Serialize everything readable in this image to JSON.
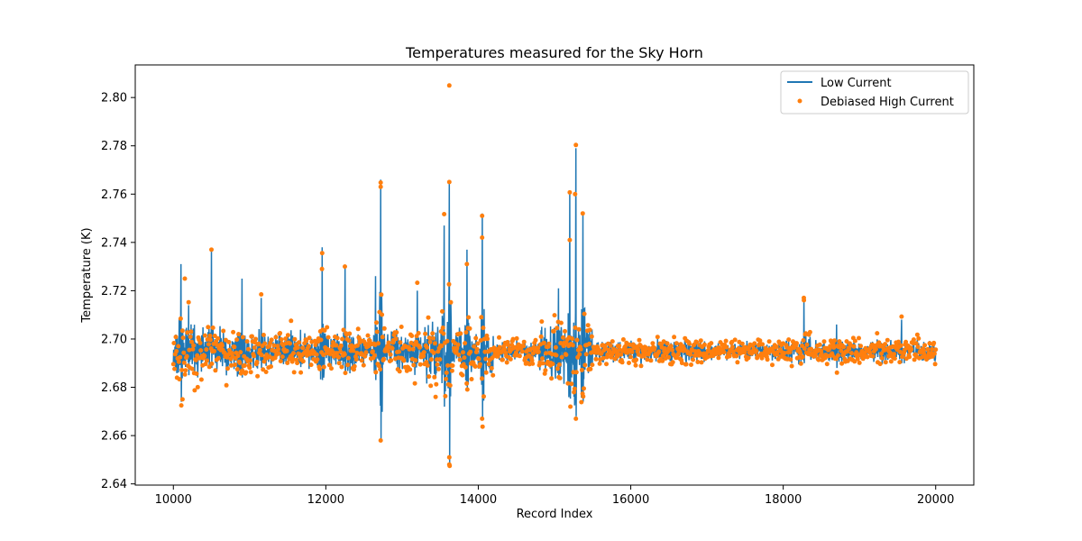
{
  "chart_data": {
    "type": "line",
    "title": "Temperatures measured for the Sky Horn",
    "xlabel": "Record Index",
    "ylabel": "Temperature (K)",
    "xlim": [
      9500,
      20500
    ],
    "ylim": [
      2.6395,
      2.8135
    ],
    "xticks": [
      10000,
      12000,
      14000,
      16000,
      18000,
      20000
    ],
    "yticks": [
      2.64,
      2.66,
      2.68,
      2.7,
      2.72,
      2.74,
      2.76,
      2.78,
      2.8
    ],
    "ytick_labels": [
      "2.64",
      "2.66",
      "2.68",
      "2.70",
      "2.72",
      "2.74",
      "2.76",
      "2.78",
      "2.80"
    ],
    "legend_position": "top-right",
    "baseline": 2.695,
    "series": [
      {
        "name": "Low Current",
        "style": "line",
        "color": "#1f77b4",
        "spikes": [
          [
            10100,
            2.731,
            2.674
          ],
          [
            10200,
            2.714,
            2.685
          ],
          [
            10500,
            2.737,
            2.688
          ],
          [
            10900,
            2.725,
            2.684
          ],
          [
            11150,
            2.717,
            2.688
          ],
          [
            11950,
            2.738,
            2.683
          ],
          [
            12250,
            2.73,
            2.686
          ],
          [
            12650,
            2.726,
            2.683
          ],
          [
            12720,
            2.766,
            2.658
          ],
          [
            13200,
            2.72,
            2.69
          ],
          [
            13550,
            2.747,
            2.672
          ],
          [
            13620,
            2.765,
            2.648
          ],
          [
            13850,
            2.737,
            2.679
          ],
          [
            14050,
            2.752,
            2.667
          ],
          [
            15050,
            2.721,
            2.683
          ],
          [
            15200,
            2.76,
            2.68
          ],
          [
            15280,
            2.779,
            2.668
          ],
          [
            15370,
            2.752,
            2.674
          ],
          [
            18270,
            2.717,
            2.69
          ],
          [
            18700,
            2.706,
            2.688
          ],
          [
            19550,
            2.708,
            2.69
          ]
        ],
        "noise": [
          [
            10000,
            10400,
            0.01
          ],
          [
            10400,
            11000,
            0.007
          ],
          [
            11000,
            12700,
            0.006
          ],
          [
            12700,
            13300,
            0.007
          ],
          [
            13300,
            14200,
            0.009
          ],
          [
            14200,
            14800,
            0.004
          ],
          [
            14800,
            15500,
            0.01
          ],
          [
            15500,
            16000,
            0.004
          ],
          [
            16000,
            17000,
            0.004
          ],
          [
            17000,
            18000,
            0.003
          ],
          [
            18000,
            20000,
            0.004
          ]
        ]
      },
      {
        "name": "Debiased High Current",
        "style": "scatter",
        "color": "#ff7f0e",
        "outliers": [
          [
            13620,
            2.805
          ],
          [
            13620,
            2.765
          ],
          [
            12720,
            2.763
          ],
          [
            12720,
            2.658
          ],
          [
            14050,
            2.751
          ],
          [
            14050,
            2.742
          ],
          [
            15270,
            2.76
          ],
          [
            15280,
            2.667
          ],
          [
            15370,
            2.752
          ],
          [
            10500,
            2.737
          ],
          [
            10150,
            2.725
          ],
          [
            13620,
            2.648
          ],
          [
            13620,
            2.651
          ],
          [
            14050,
            2.667
          ],
          [
            18270,
            2.717
          ],
          [
            12250,
            2.73
          ],
          [
            11950,
            2.729
          ],
          [
            13850,
            2.731
          ],
          [
            10120,
            2.675
          ],
          [
            15200,
            2.741
          ]
        ]
      }
    ]
  }
}
